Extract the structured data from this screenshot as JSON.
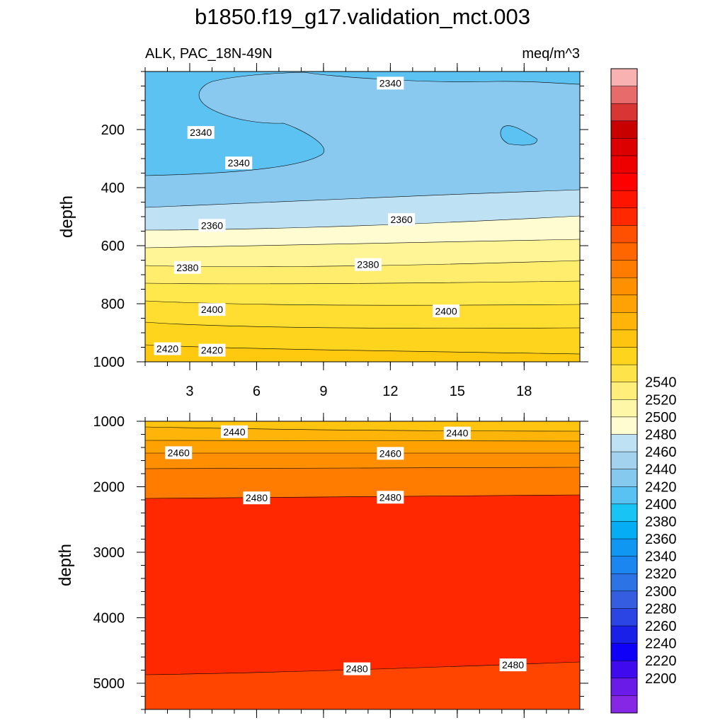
{
  "chart_data": {
    "type": "contour",
    "title": "b1850.f19_g17.validation_mct.003",
    "variable_label": "ALK, PAC_18N-49N",
    "units": "meq/m^3",
    "x_range": [
      1,
      20.5
    ],
    "x_ticks": [
      "3",
      "6",
      "9",
      "12",
      "15",
      "18"
    ],
    "panels": [
      {
        "name": "upper",
        "ylabel": "depth",
        "ylim": [
          0,
          1000
        ],
        "y_ticks": [
          "200",
          "400",
          "600",
          "800",
          "1000"
        ],
        "contour_labels": [
          {
            "value": "2340",
            "x": 12.0,
            "y": 40
          },
          {
            "value": "2340",
            "x": 3.5,
            "y": 210
          },
          {
            "value": "2340",
            "x": 5.2,
            "y": 315
          },
          {
            "value": "2360",
            "x": 4.0,
            "y": 530
          },
          {
            "value": "2360",
            "x": 12.5,
            "y": 510
          },
          {
            "value": "2380",
            "x": 2.9,
            "y": 675
          },
          {
            "value": "2380",
            "x": 11.0,
            "y": 665
          },
          {
            "value": "2400",
            "x": 4.0,
            "y": 820
          },
          {
            "value": "2400",
            "x": 14.5,
            "y": 825
          },
          {
            "value": "2420",
            "x": 2.0,
            "y": 955
          },
          {
            "value": "2420",
            "x": 4.0,
            "y": 960
          }
        ]
      },
      {
        "name": "lower",
        "ylabel": "depth",
        "ylim": [
          1000,
          5400
        ],
        "y_ticks": [
          "1000",
          "2000",
          "3000",
          "4000",
          "5000"
        ],
        "contour_labels": [
          {
            "value": "2440",
            "x": 5.0,
            "y": 1160
          },
          {
            "value": "2440",
            "x": 15.0,
            "y": 1180
          },
          {
            "value": "2460",
            "x": 2.5,
            "y": 1480
          },
          {
            "value": "2460",
            "x": 12.0,
            "y": 1490
          },
          {
            "value": "2480",
            "x": 6.0,
            "y": 2170
          },
          {
            "value": "2480",
            "x": 12.0,
            "y": 2160
          },
          {
            "value": "2480",
            "x": 10.5,
            "y": 4780
          },
          {
            "value": "2480",
            "x": 17.5,
            "y": 4720
          }
        ]
      }
    ],
    "colorbar": {
      "labels": [
        "2200",
        "2220",
        "2240",
        "2260",
        "2280",
        "2300",
        "2320",
        "2340",
        "2360",
        "2380",
        "2400",
        "2420",
        "2440",
        "2460",
        "2480",
        "2500",
        "2520",
        "2540"
      ],
      "colors": [
        "#8727E6",
        "#6A1BE8",
        "#3F0BEE",
        "#0F00F8",
        "#1A20E8",
        "#2A45E4",
        "#355DE0",
        "#2C74E6",
        "#1C86F0",
        "#0F97F2",
        "#05ADF4",
        "#17C4F4",
        "#5AC2F2",
        "#86C9EE",
        "#A3D2EE",
        "#BEE2F4",
        "#FFFCD2",
        "#FFF7A8",
        "#FFEF7A",
        "#FFE34A",
        "#FFD41C",
        "#FFC410",
        "#FFB40A",
        "#FFA304",
        "#FF9100",
        "#FF7C00",
        "#FF6600",
        "#FF4F00",
        "#FF2800",
        "#FF1400",
        "#FF0000",
        "#EE0000",
        "#DC0000",
        "#C80000",
        "#DA3535",
        "#E86B6B",
        "#F9B2B2"
      ]
    }
  }
}
